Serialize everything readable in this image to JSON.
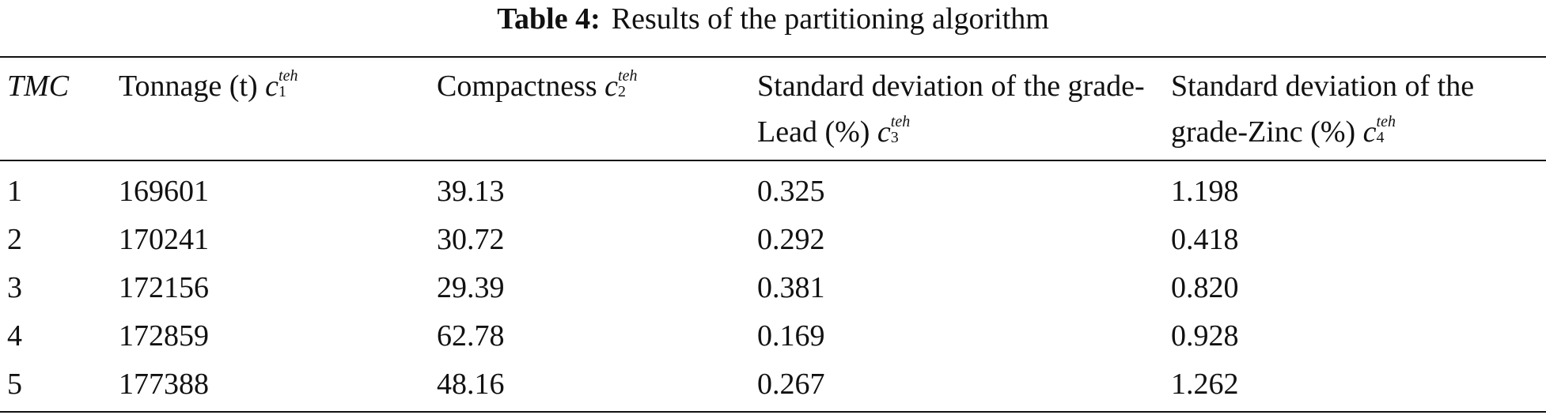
{
  "caption": {
    "label": "Table 4:",
    "text": "Results of the partitioning algorithm"
  },
  "table": {
    "header": [
      {
        "text": "",
        "symbol": "TMC"
      },
      {
        "text": "Tonnage (t)",
        "symbol": "c",
        "sub": "1",
        "sup": "teh"
      },
      {
        "text": "Compactness",
        "symbol": "c",
        "sub": "2",
        "sup": "teh"
      },
      {
        "text": "Standard deviation of the grade-Lead (%)",
        "symbol": "c",
        "sub": "3",
        "sup": "teh"
      },
      {
        "text": "Standard deviation of the grade-Zinc (%)",
        "symbol": "c",
        "sub": "4",
        "sup": "teh"
      }
    ],
    "rows": [
      [
        "1",
        "169601",
        "39.13",
        "0.325",
        "1.198"
      ],
      [
        "2",
        "170241",
        "30.72",
        "0.292",
        "0.418"
      ],
      [
        "3",
        "172156",
        "29.39",
        "0.381",
        "0.820"
      ],
      [
        "4",
        "172859",
        "62.78",
        "0.169",
        "0.928"
      ],
      [
        "5",
        "177388",
        "48.16",
        "0.267",
        "1.262"
      ]
    ]
  }
}
